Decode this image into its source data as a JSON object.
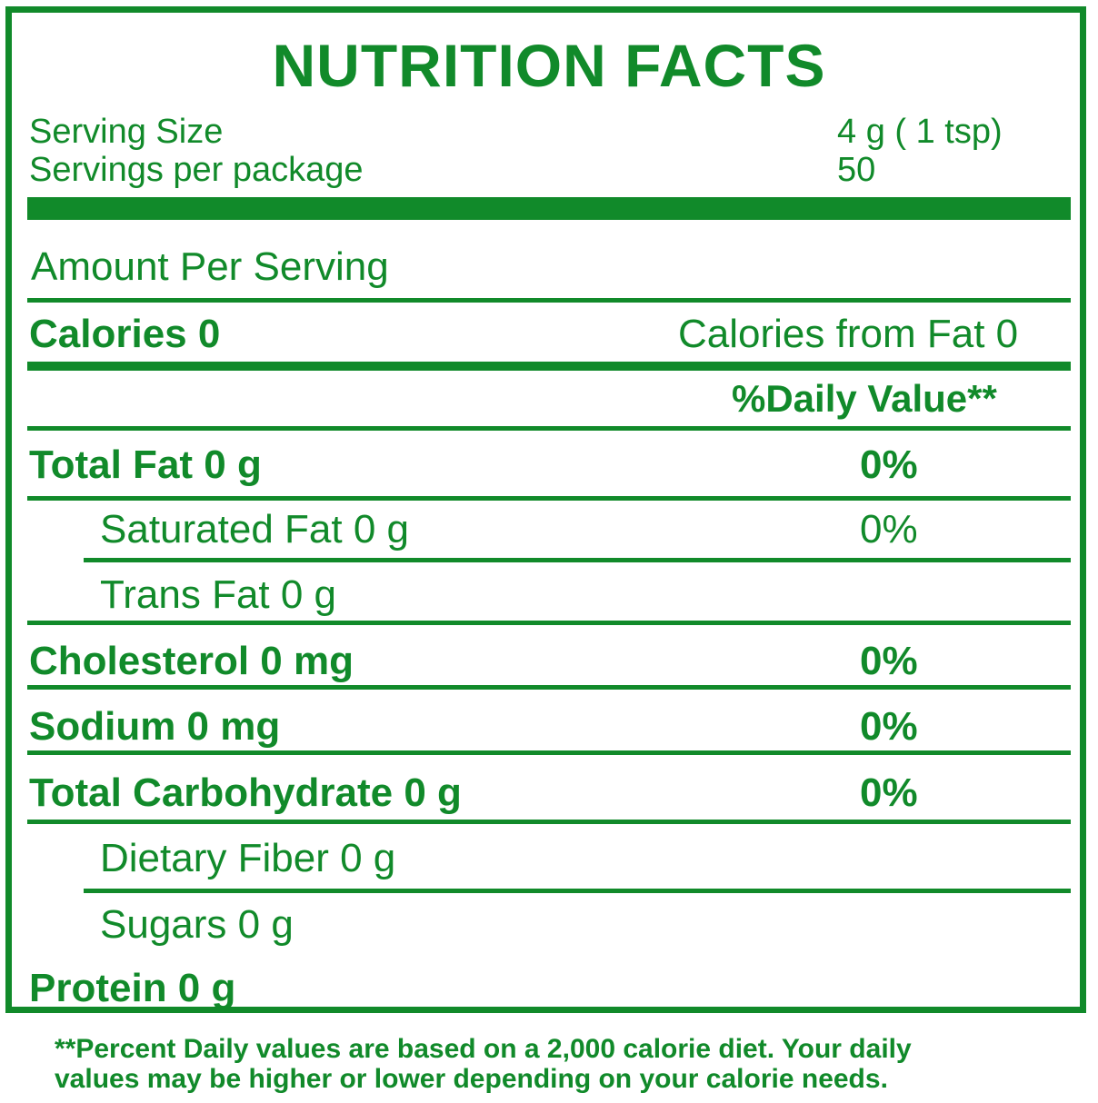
{
  "title": "NUTRITION FACTS",
  "serving": {
    "size_label": "Serving Size",
    "size_value": "4 g ( 1 tsp)",
    "per_package_label": "Servings per package",
    "per_package_value": "50"
  },
  "amount_per_serving": "Amount Per Serving",
  "calories": {
    "label": "Calories 0",
    "from_fat": "Calories from Fat 0"
  },
  "daily_value_header": "%Daily Value**",
  "rows": [
    {
      "label": "Total Fat 0 g",
      "dv": "0%"
    },
    {
      "label": "Saturated Fat 0 g",
      "dv": "0%"
    },
    {
      "label": "Trans Fat 0 g",
      "dv": ""
    },
    {
      "label": "Cholesterol 0 mg",
      "dv": "0%"
    },
    {
      "label": "Sodium 0 mg",
      "dv": "0%"
    },
    {
      "label": "Total Carbohydrate 0 g",
      "dv": "0%"
    },
    {
      "label": "Dietary Fiber 0 g",
      "dv": ""
    },
    {
      "label": "Sugars 0 g",
      "dv": ""
    },
    {
      "label": "Protein 0 g",
      "dv": ""
    }
  ],
  "footnote": {
    "line1": "**Percent Daily values are based on a 2,000 calorie diet. Your daily",
    "line2": "values may be higher or lower depending on your calorie needs."
  },
  "colors": {
    "label_green": "#118a2a",
    "background": "#ffffff"
  }
}
